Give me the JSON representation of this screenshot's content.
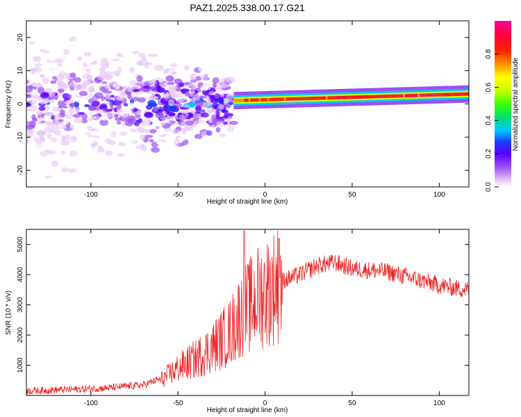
{
  "chart_data": [
    {
      "type": "heatmap",
      "panel": "top",
      "title": "PAZ1.2025.338.00.17.G21",
      "xlabel": "Height of straight line (km)",
      "ylabel": "Frequency (Hz)",
      "xlim": [
        -137,
        117
      ],
      "ylim": [
        -25,
        25
      ],
      "xticks": [
        -100,
        -50,
        0,
        50,
        100
      ],
      "yticks": [
        -20,
        -10,
        0,
        10,
        20
      ],
      "colorbar": {
        "label": "Normalized spectral amplitude",
        "range": [
          0,
          1
        ],
        "ticks": [
          0.0,
          0.2,
          0.4,
          0.6,
          0.8
        ],
        "tick_labels": [
          "0.0",
          "0.2",
          "0.4",
          "0.6",
          "0.8"
        ],
        "colors": [
          "#ffffff",
          "#e8c8f8",
          "#9b4ff0",
          "#5a00ff",
          "#1a3cff",
          "#00c8ff",
          "#00e070",
          "#40ff00",
          "#c8ff00",
          "#ffff00",
          "#ff9000",
          "#ff2000",
          "#ff0040",
          "#ff00a0"
        ]
      },
      "features": {
        "noisy_region_km": [
          -137,
          -18
        ],
        "coherent_line_start_km": -18,
        "coherent_line_freq_hz_at_start": 1.0,
        "coherent_line_freq_hz_at_end": 3.0
      }
    },
    {
      "type": "line",
      "panel": "bottom",
      "xlabel": "Height of straight line (km)",
      "ylabel": "SNR (10 * v/v)",
      "xlim": [
        -137,
        117
      ],
      "ylim": [
        0,
        5500
      ],
      "xticks": [
        -100,
        -50,
        0,
        50,
        100
      ],
      "yticks": [
        1000,
        2000,
        3000,
        4000,
        5000
      ],
      "color": "#ee2222",
      "trend": {
        "x": [
          -137,
          -110,
          -90,
          -70,
          -60,
          -50,
          -40,
          -30,
          -20,
          -15,
          -10,
          -5,
          0,
          5,
          10,
          20,
          30,
          40,
          50,
          60,
          70,
          80,
          90,
          100,
          110,
          117
        ],
        "y": [
          100,
          150,
          200,
          300,
          500,
          900,
          1200,
          1600,
          2100,
          2600,
          2900,
          3200,
          3400,
          3600,
          3800,
          4000,
          4300,
          4400,
          4200,
          4150,
          4100,
          3950,
          3800,
          3650,
          3550,
          3500
        ]
      },
      "peaks": [
        {
          "x": -12,
          "y": 5450
        },
        {
          "x": 8,
          "y": 5200
        }
      ]
    }
  ]
}
